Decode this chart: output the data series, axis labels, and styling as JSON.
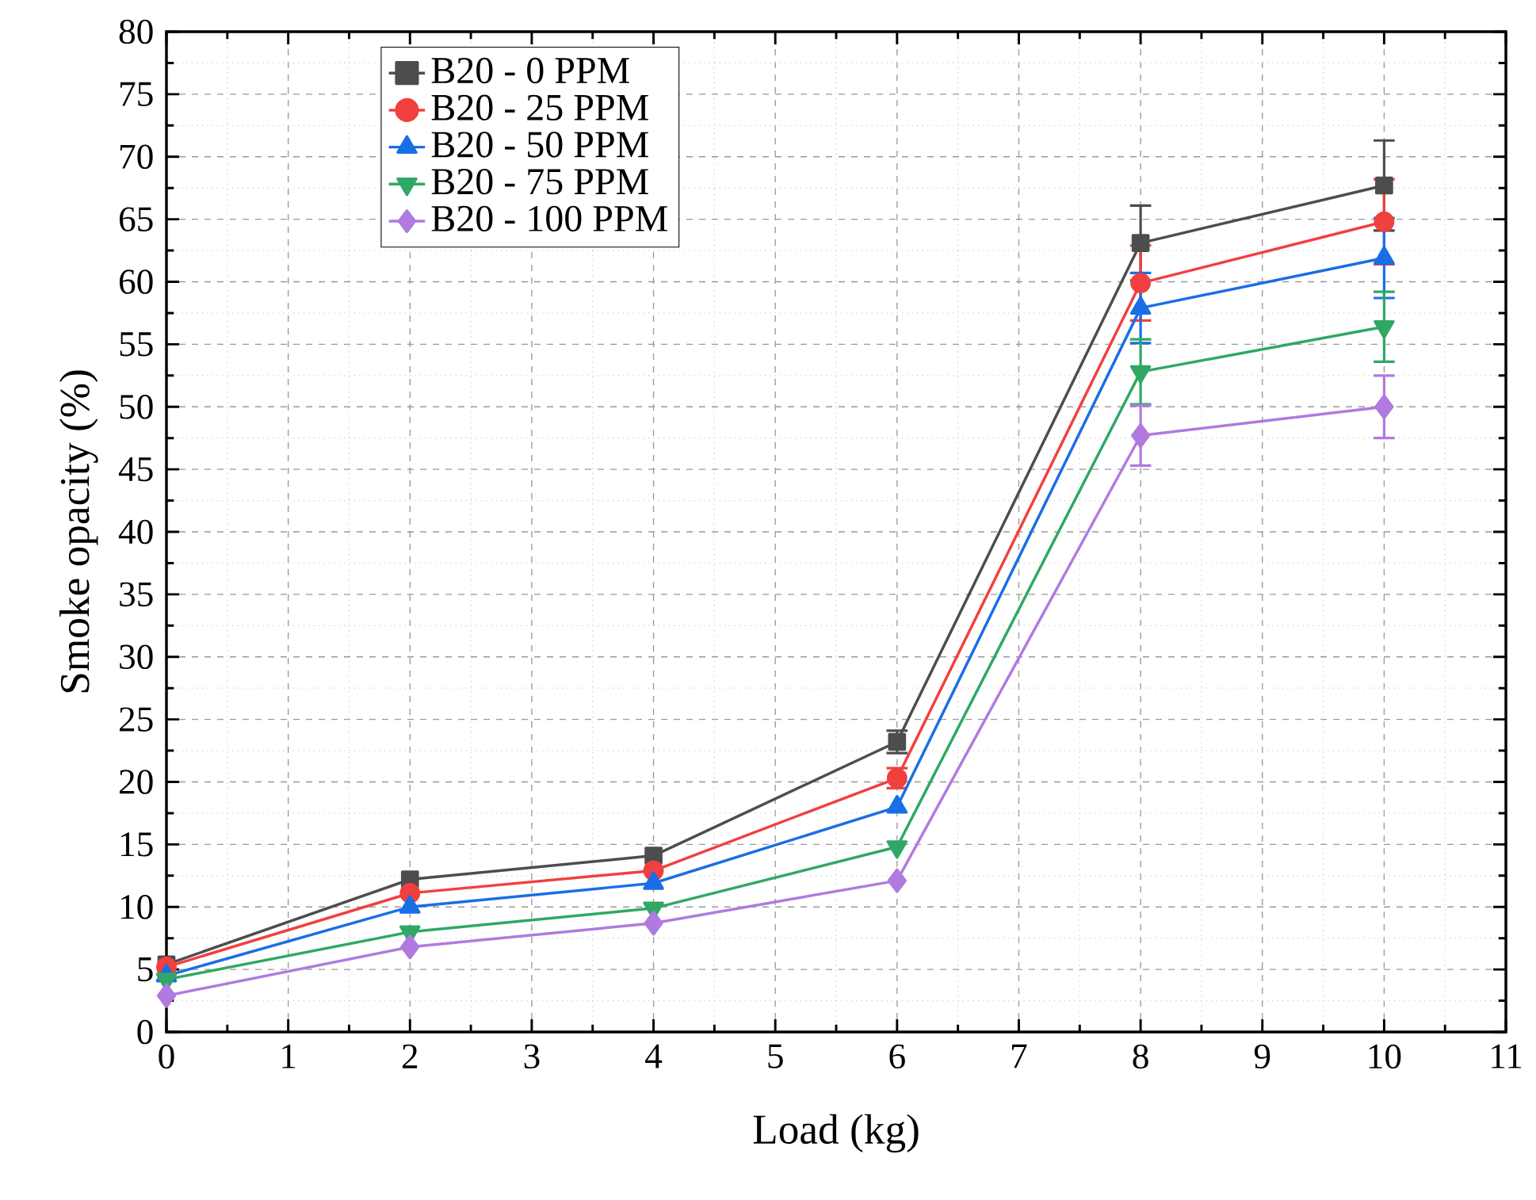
{
  "chart_data": {
    "type": "line",
    "xlabel": "Load (kg)",
    "ylabel": "Smoke opacity (%)",
    "x": [
      0,
      2,
      4,
      6,
      8,
      10
    ],
    "series": [
      {
        "name": "B20 - 0 PPM",
        "color": "#4d4d4d",
        "marker": "square",
        "values": [
          5.4,
          12.2,
          14.1,
          23.2,
          63.1,
          67.7
        ],
        "errors": [
          null,
          null,
          null,
          0.9,
          3.0,
          3.6
        ]
      },
      {
        "name": "B20 - 25 PPM",
        "color": "#f0403f",
        "marker": "circle",
        "values": [
          5.2,
          11.1,
          12.9,
          20.3,
          59.9,
          64.8
        ],
        "errors": [
          null,
          null,
          null,
          0.8,
          3.0,
          3.4
        ]
      },
      {
        "name": "B20 - 50 PPM",
        "color": "#1a6ee6",
        "marker": "triangle",
        "values": [
          4.5,
          10.0,
          11.9,
          18.0,
          57.9,
          61.9
        ],
        "errors": [
          null,
          null,
          null,
          null,
          2.8,
          3.2
        ]
      },
      {
        "name": "B20 - 75 PPM",
        "color": "#2fa865",
        "marker": "triangle-down",
        "values": [
          4.2,
          8.0,
          9.9,
          14.8,
          52.8,
          56.4
        ],
        "errors": [
          null,
          null,
          null,
          null,
          2.6,
          2.8
        ]
      },
      {
        "name": "B20 - 100 PPM",
        "color": "#b07ae0",
        "marker": "diamond",
        "values": [
          2.9,
          6.8,
          8.7,
          12.1,
          47.7,
          50.0
        ],
        "errors": [
          null,
          null,
          null,
          null,
          2.4,
          2.5
        ]
      }
    ],
    "xlim": [
      0,
      11
    ],
    "xticks": [
      0,
      1,
      2,
      3,
      4,
      5,
      6,
      7,
      8,
      9,
      10,
      11
    ],
    "ylim": [
      0,
      80
    ],
    "yticks": [
      0,
      5,
      10,
      15,
      20,
      25,
      30,
      35,
      40,
      45,
      50,
      55,
      60,
      65,
      70,
      75,
      80
    ],
    "grid": true,
    "legend": "top left",
    "line_style": "solid"
  }
}
